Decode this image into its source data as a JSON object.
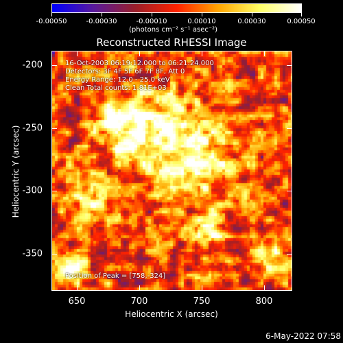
{
  "colorbar": {
    "ticks": [
      "-0.00050",
      "-0.00030",
      "-0.00010",
      "0.00010",
      "0.00030",
      "0.00050"
    ],
    "unit": "(photons cm⁻² s⁻¹ asec⁻²)",
    "colors": [
      "#0000ff",
      "#5a1a9c",
      "#9a1f2a",
      "#ff2200",
      "#ffa500",
      "#ffff66",
      "#ffffff"
    ]
  },
  "title": "Reconstructed RHESSI Image",
  "info": {
    "time_range": "16-Oct-2003 06:19:12.000 to 06:21:24.000",
    "detectors": "Detectors: 3F 4F 5F 6F 7F 8F, Att 0",
    "energy_range": "Energy Range: 12.0 - 25.0 keV",
    "clean_counts": "Clean     Total counts: 1.81E+03",
    "peak_position": "Position of Peak = [758,-324]"
  },
  "axes": {
    "xlabel": "Heliocentric X (arcsec)",
    "ylabel": "Heliocentric Y (arcsec)",
    "xticks": [
      "650",
      "700",
      "750",
      "800"
    ],
    "yticks": [
      "-200",
      "-250",
      "-300",
      "-350"
    ],
    "xlim": [
      630,
      822
    ],
    "ylim": [
      -382,
      -190
    ]
  },
  "timestamp": "6-May-2022 07:58"
}
